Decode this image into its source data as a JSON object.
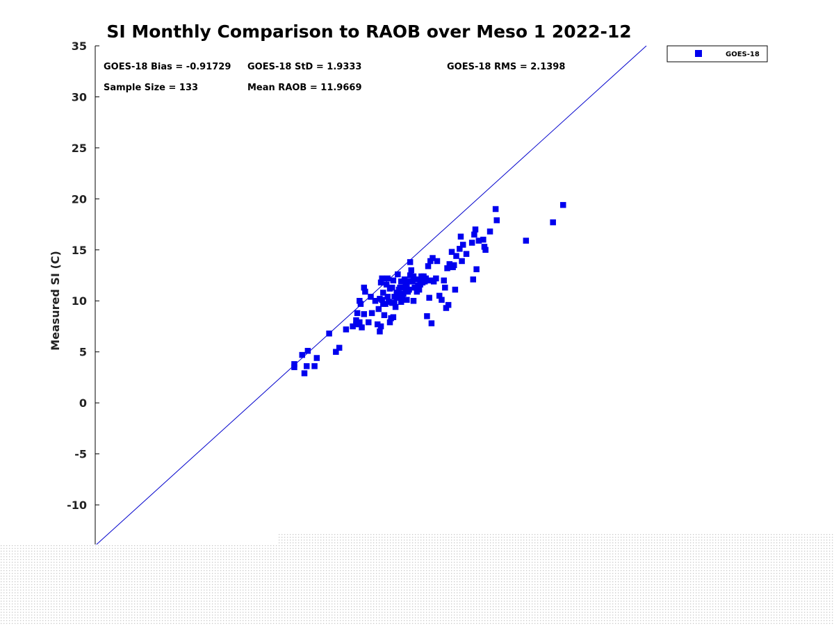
{
  "chart_data": {
    "type": "scatter",
    "title": "SI Monthly Comparison to RAOB over Meso 1 2022-12",
    "xlabel": "",
    "ylabel": "Measured SI (C)",
    "xlim": [
      -14,
      35
    ],
    "ylim": [
      -14,
      35
    ],
    "yticks": [
      -10,
      -5,
      0,
      5,
      10,
      15,
      20,
      25,
      30,
      35
    ],
    "ytick_labels": [
      "-10",
      "-5",
      "0",
      "5",
      "10",
      "15",
      "20",
      "25",
      "30",
      "35"
    ],
    "reference_line": {
      "type": "one-to-one",
      "color": "#0000cc"
    },
    "legend": {
      "position": "top-right",
      "entries": [
        "GOES-18"
      ]
    },
    "stats": {
      "bias": "GOES-18 Bias = -0.91729",
      "std": "GOES-18 StD = 1.9333",
      "rms": "GOES-18 RMS = 2.1398",
      "sample_size": "Sample Size = 133",
      "mean_raob": "Mean RAOB = 11.9669"
    },
    "series": [
      {
        "name": "GOES-18",
        "color": "#0000ee",
        "marker": "square",
        "points": [
          [
            3.7,
            3.8
          ],
          [
            3.7,
            3.5
          ],
          [
            4.6,
            2.9
          ],
          [
            4.8,
            3.6
          ],
          [
            5.5,
            3.6
          ],
          [
            4.4,
            4.7
          ],
          [
            4.9,
            5.1
          ],
          [
            5.7,
            4.4
          ],
          [
            6.8,
            6.8
          ],
          [
            7.4,
            5.0
          ],
          [
            7.7,
            5.4
          ],
          [
            8.3,
            7.2
          ],
          [
            8.9,
            7.5
          ],
          [
            9.2,
            7.7
          ],
          [
            9.5,
            7.9
          ],
          [
            9.7,
            7.4
          ],
          [
            9.2,
            8.1
          ],
          [
            9.3,
            8.8
          ],
          [
            9.5,
            10.0
          ],
          [
            9.6,
            9.7
          ],
          [
            9.9,
            8.7
          ],
          [
            9.9,
            11.3
          ],
          [
            10.0,
            10.9
          ],
          [
            10.5,
            10.4
          ],
          [
            10.3,
            7.9
          ],
          [
            10.6,
            8.8
          ],
          [
            10.9,
            10.0
          ],
          [
            11.1,
            7.7
          ],
          [
            11.3,
            7.0
          ],
          [
            11.4,
            7.5
          ],
          [
            11.2,
            9.2
          ],
          [
            11.3,
            10.2
          ],
          [
            11.4,
            11.8
          ],
          [
            11.5,
            12.2
          ],
          [
            11.6,
            9.7
          ],
          [
            11.6,
            10.8
          ],
          [
            11.7,
            8.6
          ],
          [
            11.8,
            9.7
          ],
          [
            12.0,
            12.2
          ],
          [
            12.1,
            9.9
          ],
          [
            12.2,
            7.9
          ],
          [
            12.3,
            8.3
          ],
          [
            12.4,
            9.8
          ],
          [
            12.4,
            11.3
          ],
          [
            12.5,
            8.4
          ],
          [
            12.6,
            9.8
          ],
          [
            12.7,
            9.4
          ],
          [
            12.8,
            10.3
          ],
          [
            12.9,
            10.6
          ],
          [
            12.9,
            12.6
          ],
          [
            13.1,
            11.3
          ],
          [
            13.2,
            9.9
          ],
          [
            13.3,
            10.4
          ],
          [
            13.4,
            11.9
          ],
          [
            13.5,
            12.1
          ],
          [
            13.6,
            11.2
          ],
          [
            13.7,
            11.6
          ],
          [
            13.8,
            10.9
          ],
          [
            13.9,
            11.9
          ],
          [
            14.0,
            13.8
          ],
          [
            14.1,
            13.0
          ],
          [
            14.2,
            11.9
          ],
          [
            14.3,
            10.0
          ],
          [
            14.4,
            11.3
          ],
          [
            14.6,
            10.9
          ],
          [
            14.7,
            11.5
          ],
          [
            14.8,
            11.1
          ],
          [
            14.9,
            12.0
          ],
          [
            15.0,
            12.4
          ],
          [
            15.3,
            11.9
          ],
          [
            15.4,
            12.2
          ],
          [
            15.5,
            8.5
          ],
          [
            15.6,
            13.4
          ],
          [
            15.7,
            10.3
          ],
          [
            15.8,
            13.9
          ],
          [
            15.9,
            7.8
          ],
          [
            16.0,
            14.2
          ],
          [
            16.1,
            11.9
          ],
          [
            16.3,
            12.2
          ],
          [
            16.4,
            13.9
          ],
          [
            16.6,
            10.5
          ],
          [
            16.8,
            10.1
          ],
          [
            17.0,
            12.0
          ],
          [
            17.1,
            11.3
          ],
          [
            17.2,
            9.3
          ],
          [
            17.3,
            13.2
          ],
          [
            17.4,
            9.6
          ],
          [
            17.5,
            13.6
          ],
          [
            17.7,
            14.8
          ],
          [
            17.8,
            13.3
          ],
          [
            17.9,
            13.5
          ],
          [
            18.0,
            11.1
          ],
          [
            18.1,
            14.4
          ],
          [
            18.4,
            15.1
          ],
          [
            18.5,
            16.3
          ],
          [
            18.6,
            13.9
          ],
          [
            18.7,
            15.5
          ],
          [
            19.0,
            14.6
          ],
          [
            19.5,
            15.7
          ],
          [
            19.6,
            12.1
          ],
          [
            19.7,
            16.5
          ],
          [
            19.8,
            17.0
          ],
          [
            19.9,
            13.1
          ],
          [
            20.1,
            15.9
          ],
          [
            20.5,
            16.0
          ],
          [
            20.6,
            15.3
          ],
          [
            20.7,
            15.0
          ],
          [
            21.1,
            16.8
          ],
          [
            21.6,
            19.0
          ],
          [
            21.7,
            17.9
          ],
          [
            24.3,
            15.9
          ],
          [
            26.7,
            17.7
          ],
          [
            27.6,
            19.4
          ],
          [
            15.2,
            12.4
          ],
          [
            14.9,
            11.6
          ],
          [
            13.6,
            11.7
          ],
          [
            12.5,
            12.0
          ],
          [
            14.3,
            12.4
          ],
          [
            13.4,
            10.7
          ],
          [
            11.5,
            10.1
          ],
          [
            12.0,
            10.4
          ],
          [
            13.0,
            11.1
          ],
          [
            14.5,
            12.1
          ],
          [
            15.8,
            12.0
          ],
          [
            12.8,
            10.8
          ],
          [
            13.9,
            11.1
          ],
          [
            11.9,
            11.6
          ],
          [
            12.6,
            10.4
          ],
          [
            13.2,
            11.9
          ],
          [
            14.0,
            12.5
          ],
          [
            12.2,
            11.2
          ],
          [
            15.1,
            11.8
          ],
          [
            13.7,
            10.1
          ]
        ]
      }
    ]
  }
}
